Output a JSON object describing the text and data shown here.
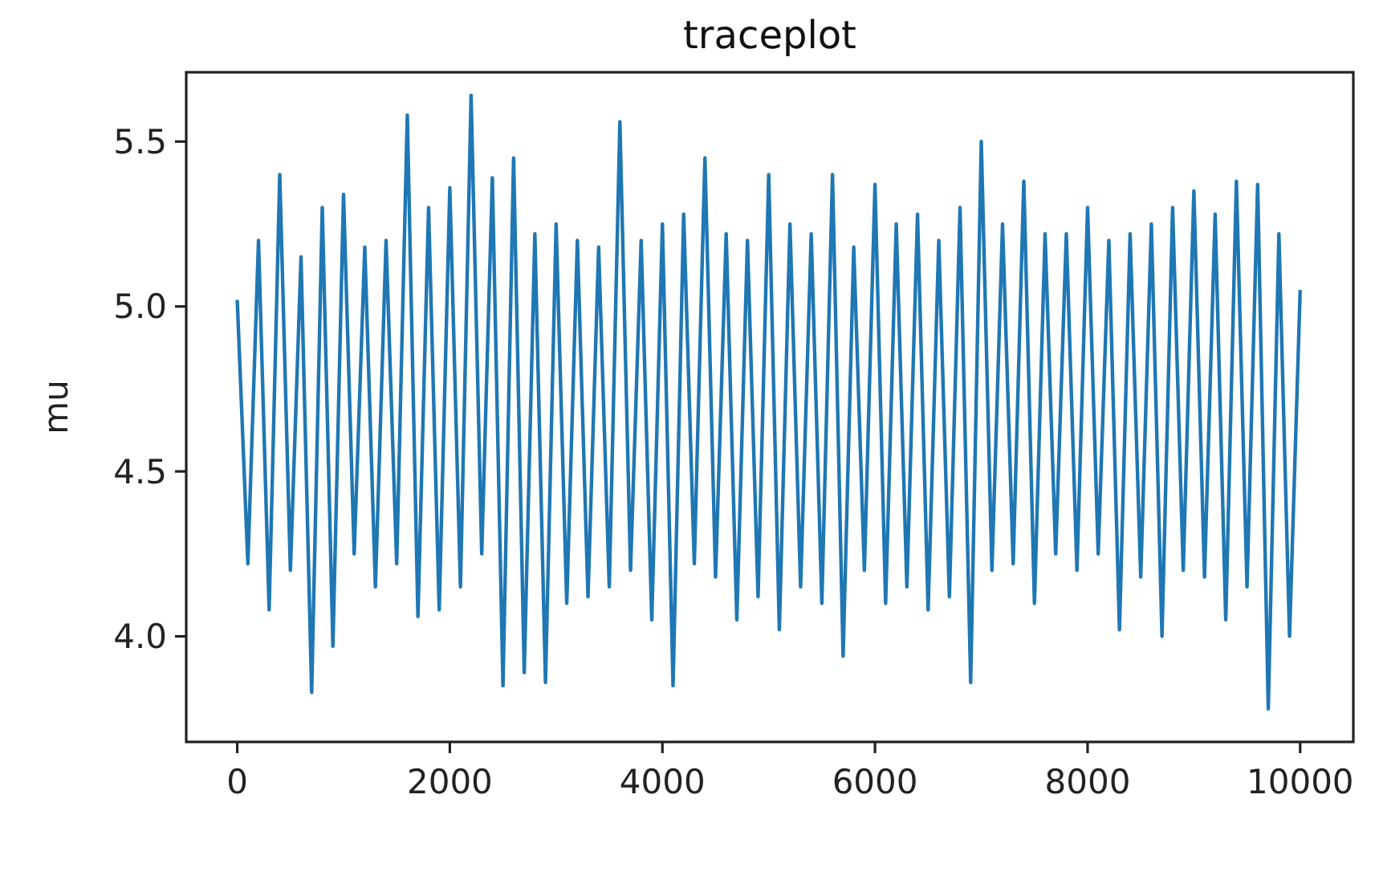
{
  "chart_data": {
    "type": "line",
    "title": "traceplot",
    "ylabel": "mu",
    "x": [
      0,
      100,
      200,
      300,
      400,
      500,
      600,
      700,
      800,
      900,
      1000,
      1100,
      1200,
      1300,
      1400,
      1500,
      1600,
      1700,
      1800,
      1900,
      2000,
      2100,
      2200,
      2300,
      2400,
      2500,
      2600,
      2700,
      2800,
      2900,
      3000,
      3100,
      3200,
      3300,
      3400,
      3500,
      3600,
      3700,
      3800,
      3900,
      4000,
      4100,
      4200,
      4300,
      4400,
      4500,
      4600,
      4700,
      4800,
      4900,
      5000,
      5100,
      5200,
      5300,
      5400,
      5500,
      5600,
      5700,
      5800,
      5900,
      6000,
      6100,
      6200,
      6300,
      6400,
      6500,
      6600,
      6700,
      6800,
      6900,
      7000,
      7100,
      7200,
      7300,
      7400,
      7500,
      7600,
      7700,
      7800,
      7900,
      8000,
      8100,
      8200,
      8300,
      8400,
      8500,
      8600,
      8700,
      8800,
      8900,
      9000,
      9100,
      9200,
      9300,
      9400,
      9500,
      9600,
      9700,
      9800,
      9900,
      10000
    ],
    "series": [
      {
        "color": "#1f77b4",
        "values": [
          5.02,
          4.22,
          5.2,
          4.08,
          5.4,
          4.2,
          5.15,
          3.83,
          5.3,
          3.97,
          5.34,
          4.25,
          5.18,
          4.15,
          5.2,
          4.22,
          5.58,
          4.06,
          5.3,
          4.08,
          5.36,
          4.15,
          5.64,
          4.25,
          5.39,
          3.85,
          5.45,
          3.89,
          5.22,
          3.86,
          5.25,
          4.1,
          5.2,
          4.12,
          5.18,
          4.15,
          5.56,
          4.2,
          5.2,
          4.05,
          5.25,
          3.85,
          5.28,
          4.22,
          5.45,
          4.18,
          5.22,
          4.05,
          5.2,
          4.12,
          5.4,
          4.02,
          5.25,
          4.15,
          5.22,
          4.1,
          5.4,
          3.94,
          5.18,
          4.2,
          5.37,
          4.1,
          5.25,
          4.15,
          5.28,
          4.08,
          5.2,
          4.12,
          5.3,
          3.86,
          5.5,
          4.2,
          5.25,
          4.22,
          5.38,
          4.1,
          5.22,
          4.25,
          5.22,
          4.2,
          5.3,
          4.25,
          5.2,
          4.02,
          5.22,
          4.18,
          5.25,
          4,
          5.3,
          4.2,
          5.35,
          4.18,
          5.28,
          4.05,
          5.38,
          4.15,
          5.37,
          3.78,
          5.22,
          4,
          5.05
        ]
      }
    ],
    "xlim": [
      -480,
      10500
    ],
    "ylim": [
      3.68,
      5.71
    ],
    "xticks": [
      0,
      2000,
      4000,
      6000,
      8000,
      10000
    ],
    "yticks": [
      {
        "value": 4,
        "label": "4.0"
      },
      {
        "value": 4.5,
        "label": "4.5"
      },
      {
        "value": 5,
        "label": "5.0"
      },
      {
        "value": 5.5,
        "label": "5.5"
      }
    ],
    "marker": "none",
    "line_style": "solid",
    "grid": false
  }
}
